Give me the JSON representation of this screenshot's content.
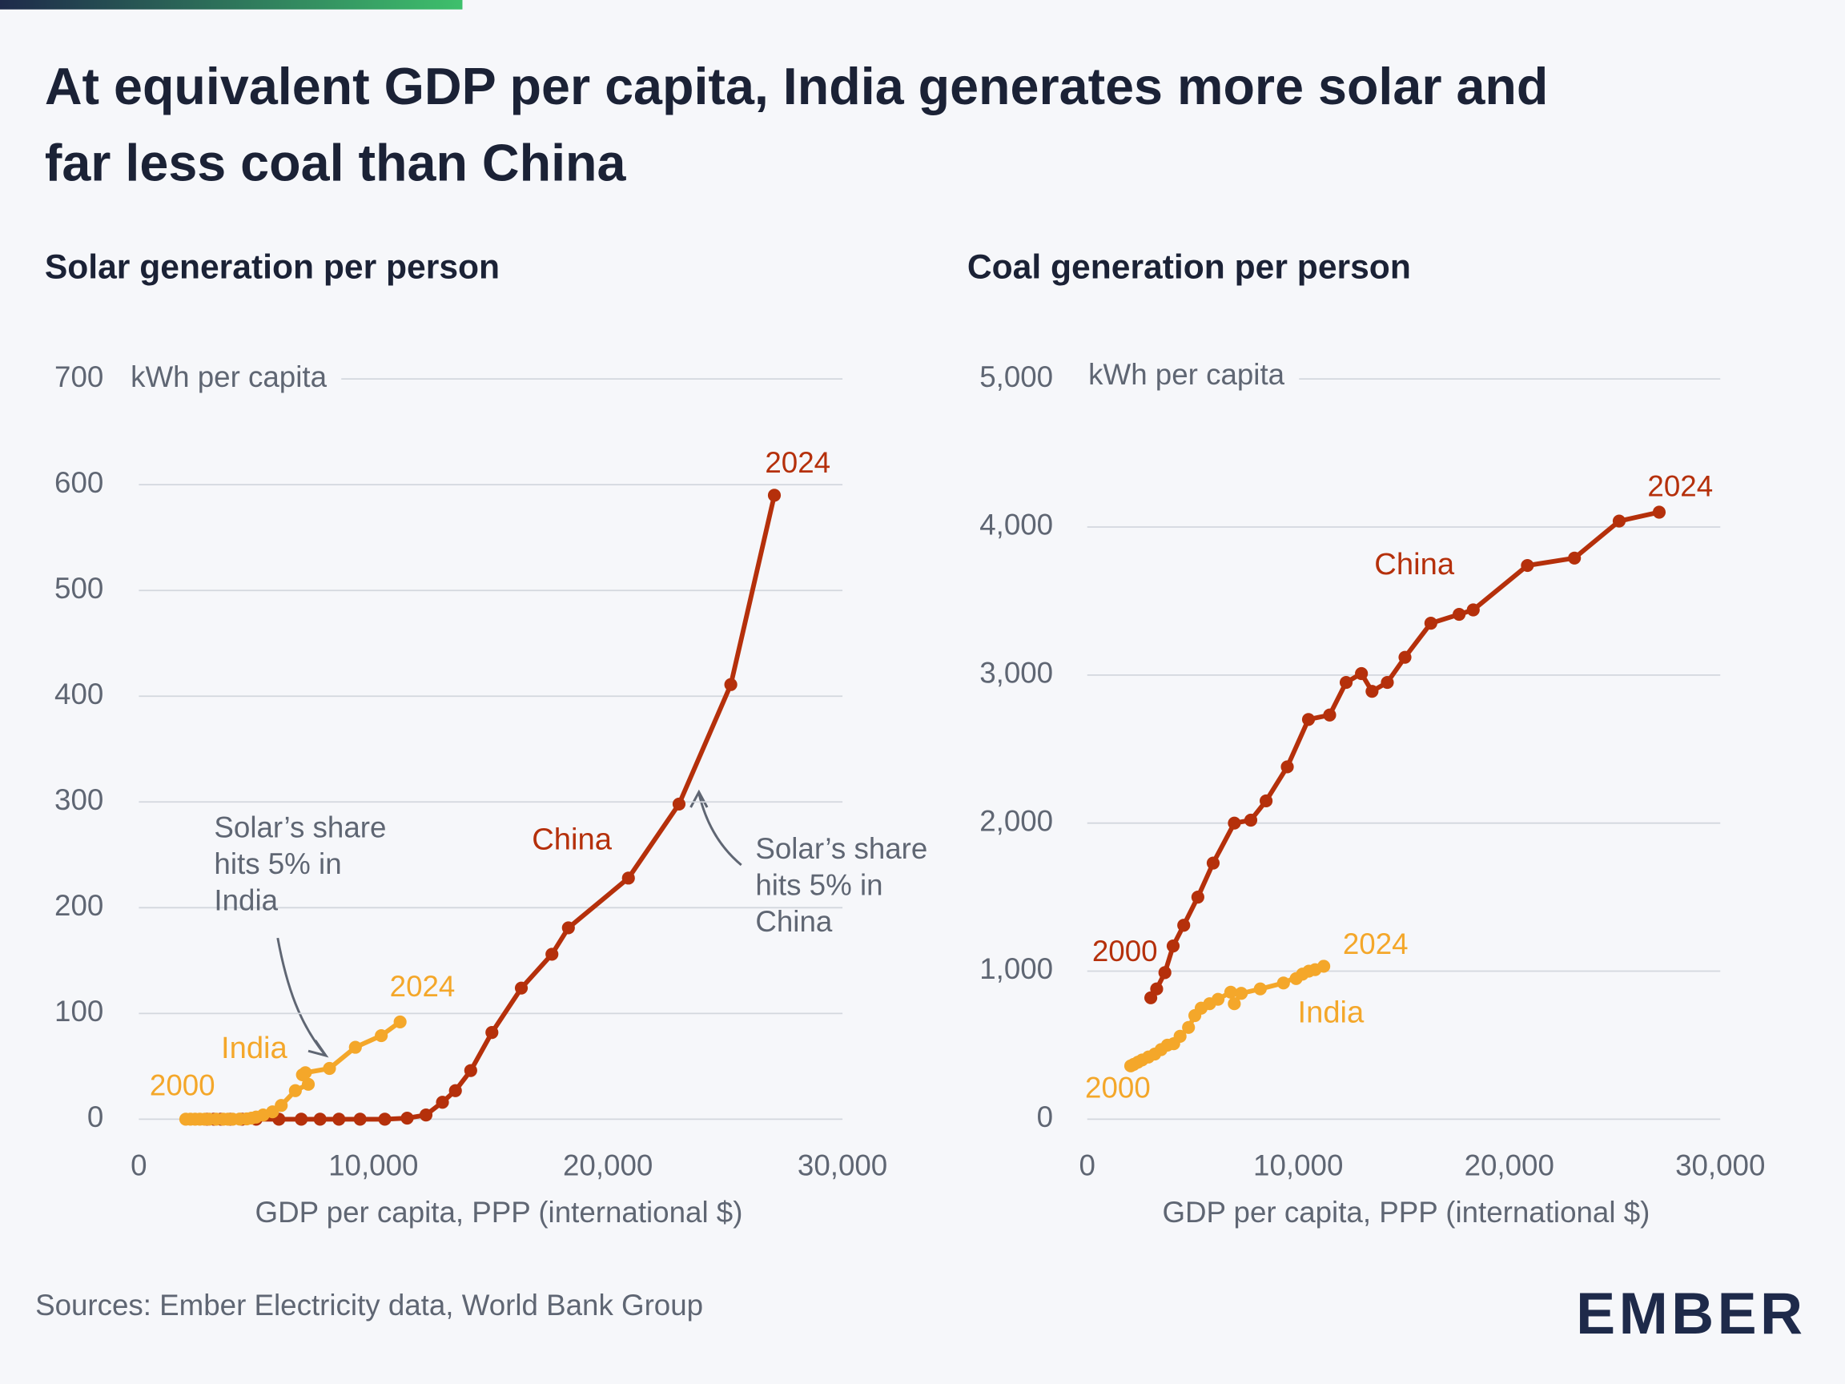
{
  "title": [
    "At equivalent GDP per capita, India generates more solar and",
    "far less coal than China"
  ],
  "source": "Sources: Ember Electricity data, World Bank Group",
  "logo": "EMBER",
  "chart_data": [
    {
      "type": "line",
      "title": "Solar generation per person",
      "y_label": "kWh per capita",
      "x_label": "GDP per capita, PPP (international $)",
      "xlim": [
        0,
        30000
      ],
      "ylim": [
        0,
        700
      ],
      "xticks": [
        0,
        {
          "value": 10000,
          "label": "10,000"
        },
        {
          "value": 20000,
          "label": "20,000"
        },
        {
          "value": 30000,
          "label": "30,000"
        }
      ],
      "yticks": [
        0,
        100,
        200,
        300,
        400,
        500,
        600,
        700
      ],
      "grid": true,
      "series": [
        {
          "name": "China",
          "color": "#b5300b",
          "x": [
            2900,
            3200,
            3500,
            3900,
            4400,
            5000,
            5971,
            6924,
            7727,
            8530,
            9433,
            10487,
            11440,
            12243,
            12945,
            13497,
            14150,
            15053,
            16307,
            17612,
            18314,
            20873,
            23031,
            25238,
            27095
          ],
          "values": [
            0,
            0,
            0,
            0,
            0,
            0,
            0,
            0,
            0,
            0,
            0,
            0,
            1,
            4,
            16,
            27,
            46,
            82,
            124,
            156,
            181,
            228,
            298,
            411,
            590
          ]
        },
        {
          "name": "India",
          "color": "#f4a72a",
          "x": [
            2000,
            2200,
            2400,
            2600,
            2800,
            3000,
            3300,
            3600,
            3800,
            4000,
            4300,
            4600,
            4800,
            5000,
            5300,
            5700,
            6071,
            6673,
            7225,
            6975,
            7100,
            8128,
            9232,
            10336,
            11139
          ],
          "values": [
            0,
            0,
            0,
            0,
            0,
            0,
            0,
            0,
            0,
            0,
            0.1,
            0.3,
            1,
            2,
            4,
            7,
            13,
            27,
            33,
            42,
            44,
            48,
            68,
            79,
            92
          ]
        }
      ],
      "annotations": [
        {
          "text": "2000",
          "color": "#f4a72a"
        },
        {
          "text": "2024",
          "color": "#f4a72a"
        },
        {
          "text": "2024",
          "color": "#b5300b"
        },
        {
          "lines": [
            "Solar’s share",
            "hits 5% in",
            "India"
          ],
          "color": "#5f6673"
        },
        {
          "lines": [
            "Solar’s share",
            "hits 5% in",
            "China"
          ],
          "color": "#5f6673"
        }
      ]
    },
    {
      "type": "line",
      "title": "Coal generation per person",
      "y_label": "kWh per capita",
      "x_label": "GDP per capita, PPP (international $)",
      "xlim": [
        0,
        30000
      ],
      "ylim": [
        0,
        5000
      ],
      "xticks": [
        0,
        {
          "value": 10000,
          "label": "10,000"
        },
        {
          "value": 20000,
          "label": "20,000"
        },
        {
          "value": 30000,
          "label": "30,000"
        }
      ],
      "yticks": [
        0,
        {
          "value": 1000,
          "label": "1,000"
        },
        {
          "value": 2000,
          "label": "2,000"
        },
        {
          "value": 3000,
          "label": "3,000"
        },
        {
          "value": 4000,
          "label": "4,000"
        },
        {
          "value": 5000,
          "label": "5,000"
        }
      ],
      "grid": true,
      "series": [
        {
          "name": "China",
          "color": "#b5300b",
          "x": [
            3012,
            3291,
            3681,
            4071,
            4573,
            5243,
            5968,
            6972,
            7752,
            8477,
            9481,
            10485,
            11489,
            12270,
            12995,
            13497,
            14222,
            15058,
            16285,
            17624,
            18293,
            20859,
            23090,
            25209,
            27105
          ],
          "values": [
            820,
            880,
            990,
            1170,
            1310,
            1500,
            1730,
            2000,
            2020,
            2150,
            2380,
            2700,
            2730,
            2950,
            3010,
            2890,
            2950,
            3120,
            3350,
            3410,
            3440,
            3740,
            3790,
            4040,
            4100
          ]
        },
        {
          "name": "India",
          "color": "#f4a72a",
          "x": [
            2060,
            2200,
            2400,
            2600,
            2900,
            3200,
            3500,
            3800,
            4100,
            4400,
            4800,
            5100,
            5400,
            5800,
            6200,
            6800,
            6970,
            7300,
            8200,
            9300,
            10500,
            9900,
            10200,
            10800,
            11210
          ],
          "values": [
            360,
            370,
            385,
            400,
            420,
            440,
            470,
            500,
            510,
            560,
            620,
            700,
            750,
            780,
            810,
            858,
            780,
            850,
            880,
            920,
            1000,
            950,
            980,
            1010,
            1033
          ]
        }
      ],
      "annotations": [
        {
          "text": "2000",
          "color": "#b5300b"
        },
        {
          "text": "2024",
          "color": "#b5300b"
        },
        {
          "text": "2000",
          "color": "#f4a72a"
        },
        {
          "text": "2024",
          "color": "#f4a72a"
        }
      ]
    }
  ]
}
